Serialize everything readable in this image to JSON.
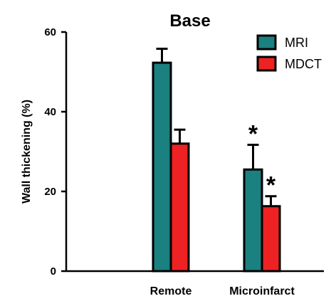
{
  "chart_data": {
    "type": "bar",
    "title": "Base",
    "xlabel": "",
    "ylabel": "Wall thickening  (%)",
    "ylim": [
      0,
      60
    ],
    "yticks": [
      "0",
      "20",
      "40",
      "60"
    ],
    "categories": [
      "",
      "Remote",
      "Microinfarct"
    ],
    "series": [
      {
        "name": "MRI",
        "color": "#1a8080",
        "values": [
          null,
          52.3,
          25.5
        ],
        "errors": [
          null,
          3.5,
          6.2
        ],
        "annotations": [
          null,
          null,
          "*"
        ]
      },
      {
        "name": "MDCT",
        "color": "#ee2222",
        "values": [
          null,
          32.0,
          16.3
        ],
        "errors": [
          null,
          3.5,
          2.5
        ],
        "annotations": [
          null,
          null,
          "*"
        ]
      }
    ],
    "legend_position": "top-right",
    "grid": false
  }
}
